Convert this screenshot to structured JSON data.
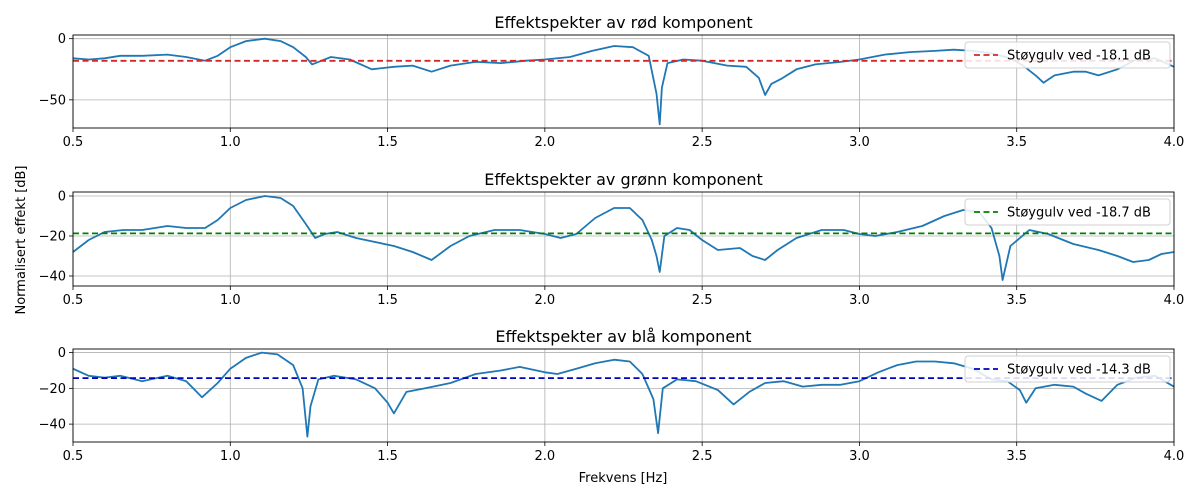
{
  "figure": {
    "ylabel": "Normalisert effekt [dB]",
    "xlabel": "Frekvens [Hz]"
  },
  "chart_data": [
    {
      "type": "line",
      "title": "Effektspekter av rød komponent",
      "xlabel": "",
      "ylabel": "",
      "xlim": [
        0.5,
        4.0
      ],
      "ylim": [
        -73,
        3
      ],
      "xticks": [
        "0.5",
        "1.0",
        "1.5",
        "2.0",
        "2.5",
        "3.0",
        "3.5",
        "4.0"
      ],
      "yticks": [
        0,
        -50
      ],
      "ytick_labels": [
        "0",
        "−50"
      ],
      "grid": true,
      "legend_position": "top-right",
      "series": [
        {
          "color": "#1f77b4",
          "x": [
            0.5,
            0.55,
            0.6,
            0.65,
            0.72,
            0.8,
            0.86,
            0.92,
            0.96,
            1.0,
            1.05,
            1.11,
            1.16,
            1.2,
            1.24,
            1.26,
            1.28,
            1.32,
            1.38,
            1.45,
            1.52,
            1.58,
            1.64,
            1.7,
            1.78,
            1.86,
            1.94,
            2.0,
            2.08,
            2.15,
            2.22,
            2.28,
            2.33,
            2.355,
            2.365,
            2.372,
            2.39,
            2.44,
            2.5,
            2.58,
            2.64,
            2.68,
            2.7,
            2.72,
            2.75,
            2.8,
            2.86,
            2.94,
            3.0,
            3.08,
            3.16,
            3.24,
            3.3,
            3.36,
            3.42,
            3.48,
            3.52,
            3.56,
            3.585,
            3.62,
            3.68,
            3.72,
            3.76,
            3.82,
            3.88,
            3.94,
            4.0
          ],
          "y": [
            -16,
            -17,
            -16,
            -14,
            -14,
            -13,
            -15,
            -18,
            -14,
            -7,
            -2,
            0,
            -2,
            -7,
            -15,
            -21,
            -19,
            -15,
            -17,
            -25,
            -23,
            -22,
            -27,
            -22,
            -19,
            -20,
            -18,
            -17,
            -15,
            -10,
            -6,
            -7,
            -14,
            -45,
            -70,
            -40,
            -20,
            -17,
            -18,
            -22,
            -23,
            -32,
            -46,
            -37,
            -33,
            -25,
            -21,
            -19,
            -17,
            -13,
            -11,
            -10,
            -9,
            -10,
            -12,
            -16,
            -22,
            -30,
            -36,
            -30,
            -27,
            -27,
            -30,
            -25,
            -17,
            -16,
            -23
          ]
        }
      ],
      "reference_line": {
        "label": "Støygulv ved -18.1 dB",
        "value": -18.1,
        "color": "#d62728",
        "style": "dashed"
      }
    },
    {
      "type": "line",
      "title": "Effektspekter av grønn komponent",
      "xlabel": "",
      "ylabel": "",
      "xlim": [
        0.5,
        4.0
      ],
      "ylim": [
        -45,
        2
      ],
      "xticks": [
        "0.5",
        "1.0",
        "1.5",
        "2.0",
        "2.5",
        "3.0",
        "3.5",
        "4.0"
      ],
      "yticks": [
        0,
        -20,
        -40
      ],
      "ytick_labels": [
        "0",
        "−20",
        "−40"
      ],
      "grid": true,
      "legend_position": "top-right",
      "series": [
        {
          "color": "#1f77b4",
          "x": [
            0.5,
            0.55,
            0.6,
            0.66,
            0.72,
            0.8,
            0.86,
            0.92,
            0.96,
            1.0,
            1.05,
            1.11,
            1.16,
            1.2,
            1.24,
            1.27,
            1.3,
            1.34,
            1.4,
            1.46,
            1.52,
            1.58,
            1.64,
            1.7,
            1.76,
            1.84,
            1.92,
            2.0,
            2.05,
            2.1,
            2.16,
            2.22,
            2.27,
            2.31,
            2.34,
            2.355,
            2.365,
            2.38,
            2.42,
            2.46,
            2.5,
            2.55,
            2.62,
            2.66,
            2.7,
            2.74,
            2.8,
            2.88,
            2.95,
            3.0,
            3.05,
            3.12,
            3.2,
            3.27,
            3.33,
            3.38,
            3.42,
            3.445,
            3.455,
            3.48,
            3.54,
            3.6,
            3.68,
            3.76,
            3.82,
            3.87,
            3.92,
            3.96,
            4.0
          ],
          "y": [
            -28,
            -22,
            -18,
            -17,
            -17,
            -15,
            -16,
            -16,
            -12,
            -6,
            -2,
            0,
            -1,
            -5,
            -14,
            -21,
            -19,
            -18,
            -21,
            -23,
            -25,
            -28,
            -32,
            -25,
            -20,
            -17,
            -17,
            -19,
            -21,
            -19,
            -11,
            -6,
            -6,
            -12,
            -22,
            -30,
            -38,
            -20,
            -16,
            -17,
            -22,
            -27,
            -26,
            -30,
            -32,
            -27,
            -21,
            -17,
            -17,
            -19,
            -20,
            -18,
            -15,
            -10,
            -7,
            -8,
            -16,
            -30,
            -42,
            -25,
            -17,
            -19,
            -24,
            -27,
            -30,
            -33,
            -32,
            -29,
            -28
          ]
        }
      ],
      "reference_line": {
        "label": "Støygulv ved -18.7 dB",
        "value": -18.7,
        "color": "#008000",
        "style": "dashed"
      }
    },
    {
      "type": "line",
      "title": "Effektspekter av blå komponent",
      "xlabel": "Frekvens [Hz]",
      "ylabel": "",
      "xlim": [
        0.5,
        4.0
      ],
      "ylim": [
        -50,
        2
      ],
      "xticks": [
        "0.5",
        "1.0",
        "1.5",
        "2.0",
        "2.5",
        "3.0",
        "3.5",
        "4.0"
      ],
      "yticks": [
        0,
        -20,
        -40
      ],
      "ytick_labels": [
        "0",
        "−20",
        "−40"
      ],
      "grid": true,
      "legend_position": "top-right",
      "series": [
        {
          "color": "#1f77b4",
          "x": [
            0.5,
            0.55,
            0.6,
            0.65,
            0.72,
            0.8,
            0.86,
            0.91,
            0.96,
            1.0,
            1.05,
            1.1,
            1.15,
            1.2,
            1.23,
            1.245,
            1.255,
            1.28,
            1.33,
            1.4,
            1.46,
            1.5,
            1.52,
            1.56,
            1.62,
            1.7,
            1.78,
            1.86,
            1.92,
            2.0,
            2.04,
            2.1,
            2.16,
            2.22,
            2.27,
            2.31,
            2.345,
            2.36,
            2.375,
            2.42,
            2.48,
            2.55,
            2.6,
            2.65,
            2.7,
            2.76,
            2.82,
            2.88,
            2.94,
            3.0,
            3.06,
            3.12,
            3.18,
            3.24,
            3.3,
            3.36,
            3.42,
            3.47,
            3.51,
            3.53,
            3.56,
            3.62,
            3.68,
            3.72,
            3.77,
            3.82,
            3.88,
            3.94,
            4.0
          ],
          "y": [
            -9,
            -13,
            -14,
            -13,
            -16,
            -13,
            -16,
            -25,
            -17,
            -9,
            -3,
            0,
            -1,
            -7,
            -20,
            -47,
            -30,
            -15,
            -13,
            -15,
            -20,
            -28,
            -34,
            -22,
            -20,
            -17,
            -12,
            -10,
            -8,
            -11,
            -12,
            -9,
            -6,
            -4,
            -5,
            -12,
            -26,
            -45,
            -20,
            -15,
            -16,
            -21,
            -29,
            -22,
            -17,
            -16,
            -19,
            -18,
            -18,
            -16,
            -11,
            -7,
            -5,
            -5,
            -6,
            -9,
            -15,
            -16,
            -21,
            -28,
            -20,
            -18,
            -19,
            -23,
            -27,
            -18,
            -14,
            -13,
            -19
          ]
        }
      ],
      "reference_line": {
        "label": "Støygulv ved -14.3 dB",
        "value": -14.3,
        "color": "#0000bf",
        "style": "dashed"
      }
    }
  ]
}
